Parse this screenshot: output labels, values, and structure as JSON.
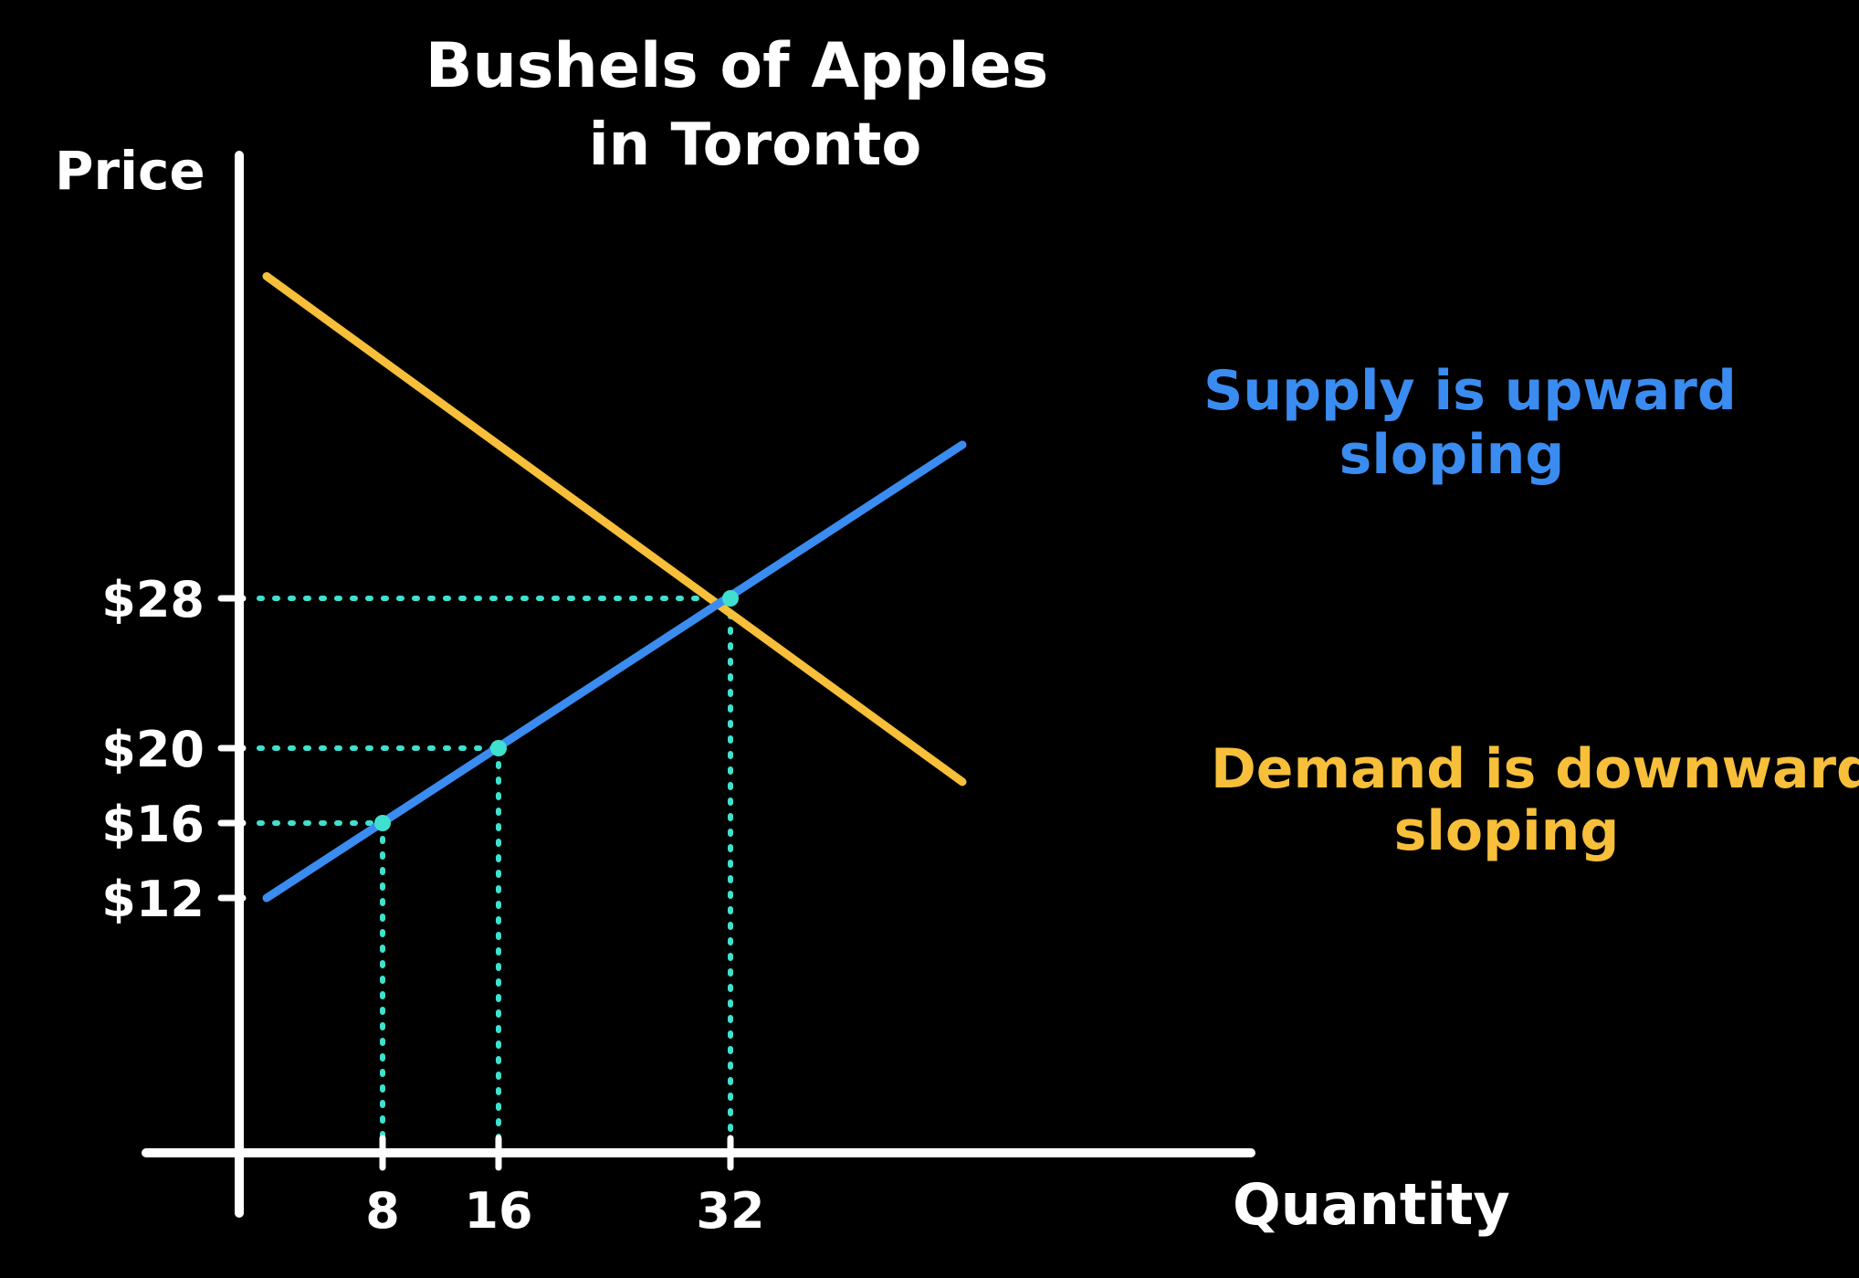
{
  "colors": {
    "background": "#000000",
    "axis": "#ffffff",
    "text": "#ffffff",
    "supply": "#3a8cf0",
    "demand": "#f7bf3a",
    "guide": "#3fe0cf"
  },
  "chart_data": {
    "type": "line",
    "title": [
      "Bushels of Apples",
      "in Toronto"
    ],
    "xlabel": "Quantity",
    "ylabel": "Price",
    "x_ticks": [
      {
        "value": 8,
        "label": "8"
      },
      {
        "value": 16,
        "label": "16"
      },
      {
        "value": 32,
        "label": "32"
      }
    ],
    "y_ticks": [
      {
        "value": 12,
        "label": "$12"
      },
      {
        "value": 16,
        "label": "$16"
      },
      {
        "value": 20,
        "label": "$20"
      },
      {
        "value": 28,
        "label": "$28"
      }
    ],
    "series": [
      {
        "key": "supply",
        "x": [
          0,
          48
        ],
        "y": [
          12,
          36.2
        ]
      },
      {
        "key": "demand",
        "x": [
          0,
          48
        ],
        "y": [
          45.2,
          18.2
        ]
      }
    ],
    "highlighted_points": [
      {
        "x": 8,
        "y": 16
      },
      {
        "x": 16,
        "y": 20
      },
      {
        "x": 32,
        "y": 28
      }
    ],
    "annotations": [
      {
        "key": "supply",
        "lines": [
          "Supply is upward",
          "sloping"
        ]
      },
      {
        "key": "demand",
        "lines": [
          "Demand is downward",
          "sloping"
        ]
      }
    ],
    "grid": false,
    "legend": "none"
  }
}
